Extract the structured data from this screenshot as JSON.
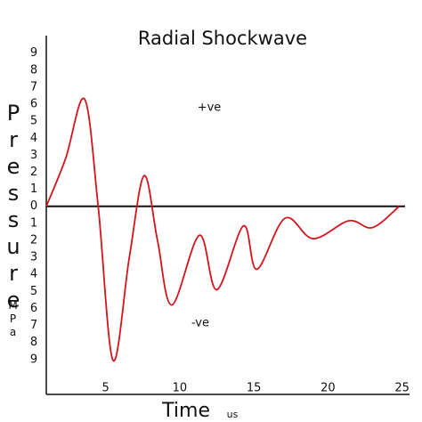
{
  "chart_data": {
    "type": "line",
    "title": "Radial Shockwave",
    "x_label": "Time",
    "x_unit": "us",
    "y_label": "Pressure",
    "y_unit": "MPa",
    "annotations": [
      "+ve",
      "-ve"
    ],
    "x": [
      1,
      2.3,
      3.58,
      4.5,
      5.5,
      6.6,
      7.6,
      8.5,
      9.47,
      11.33,
      12.5,
      14.3,
      15.2,
      17.1,
      19,
      21.4,
      23,
      24.8
    ],
    "series": [
      {
        "color": "#d4141c",
        "values": [
          0,
          2.8,
          6.3,
          0,
          -9.05,
          -3,
          1.8,
          -2,
          -5.8,
          -1.7,
          -4.9,
          -1.15,
          -3.7,
          -0.7,
          -1.9,
          -0.85,
          -1.25,
          0
        ]
      }
    ],
    "xlim": [
      1,
      25.5
    ],
    "xticks": [
      5,
      10,
      15,
      20,
      25
    ],
    "ylim": [
      -11.05,
      10.5
    ],
    "yticks": [
      9,
      8,
      7,
      6,
      5,
      4,
      3,
      2,
      1,
      0,
      {
        "value": -1,
        "label": "1"
      },
      {
        "value": -2,
        "label": "2"
      },
      {
        "value": -3,
        "label": "3"
      },
      {
        "value": -4,
        "label": "4"
      },
      {
        "value": -5,
        "label": "5"
      },
      {
        "value": -6,
        "label": "6"
      },
      {
        "value": -7,
        "label": "7"
      },
      {
        "value": -8,
        "label": "8"
      },
      {
        "value": -9,
        "label": "9"
      }
    ],
    "grid": false
  }
}
